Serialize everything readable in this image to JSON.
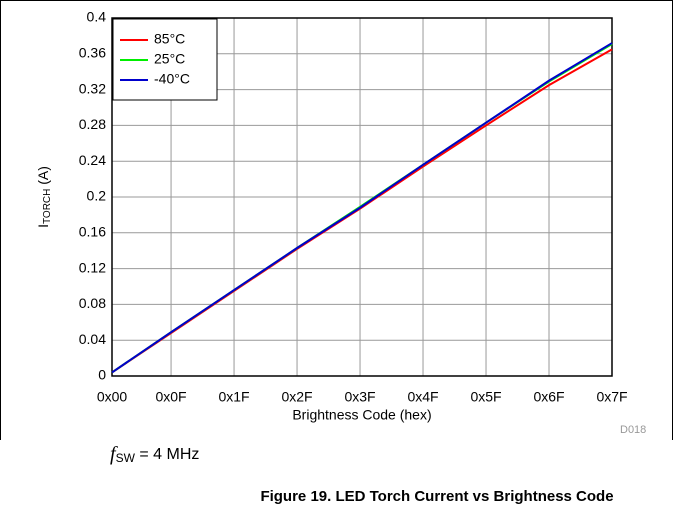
{
  "chart_data": {
    "type": "line",
    "title": "Figure 19. LED Torch Current vs Brightness Code",
    "x_label": "Brightness Code (hex)",
    "y_label": {
      "main": "I",
      "sub": "TORCH",
      "unit": " (A)"
    },
    "note": {
      "main": "f",
      "sub": "SW",
      "rest": " = 4 MHz"
    },
    "code": "D018",
    "x": [
      0,
      15,
      31,
      47,
      63,
      79,
      95,
      111,
      127
    ],
    "series": [
      {
        "name": "85°C",
        "color": "#ff0000",
        "values": [
          0.004,
          0.048,
          0.095,
          0.142,
          0.187,
          0.234,
          0.28,
          0.325,
          0.365
        ]
      },
      {
        "name": "25°C",
        "color": "#00ee00",
        "values": [
          0.004,
          0.049,
          0.096,
          0.143,
          0.189,
          0.236,
          0.283,
          0.329,
          0.371
        ]
      },
      {
        "name": "-40°C",
        "color": "#0000cc",
        "values": [
          0.004,
          0.049,
          0.096,
          0.143,
          0.188,
          0.236,
          0.283,
          0.33,
          0.372
        ]
      }
    ],
    "xlim": [
      0,
      127
    ],
    "xticks": [
      {
        "value": 0,
        "label": "0x00"
      },
      {
        "value": 15,
        "label": "0x0F"
      },
      {
        "value": 31,
        "label": "0x1F"
      },
      {
        "value": 47,
        "label": "0x2F"
      },
      {
        "value": 63,
        "label": "0x3F"
      },
      {
        "value": 79,
        "label": "0x4F"
      },
      {
        "value": 95,
        "label": "0x5F"
      },
      {
        "value": 111,
        "label": "0x6F"
      },
      {
        "value": 127,
        "label": "0x7F"
      }
    ],
    "ylim": [
      0,
      0.4
    ],
    "yticks": [
      0,
      0.04,
      0.08,
      0.12,
      0.16,
      0.2,
      0.24,
      0.28,
      0.32,
      0.36,
      0.4
    ],
    "grid": true,
    "legend": "upper left"
  }
}
